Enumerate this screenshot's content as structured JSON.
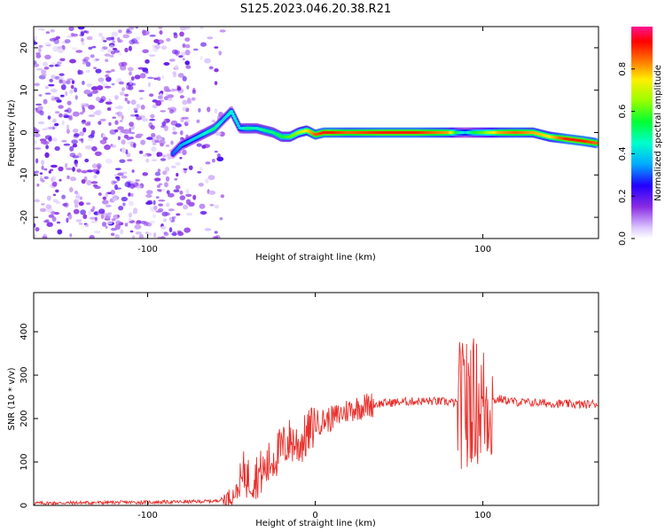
{
  "title": "S125.2023.046.20.38.R21",
  "colors": {
    "snr_line": "#e8302c",
    "spectrogram_background_speckle": "#8a2be2",
    "ridge_colors": [
      "#5500ff",
      "#00d4ff",
      "#00ff44",
      "#ffee00",
      "#ff0000"
    ]
  },
  "chart_data": [
    {
      "type": "heatmap",
      "name": "spectrogram",
      "xlabel": "Height of straight line (km)",
      "ylabel": "Frequency (Hz)",
      "xlim": [
        -168,
        169
      ],
      "ylim": [
        -25,
        25
      ],
      "xticks": [
        -100,
        100
      ],
      "yticks": [
        -20,
        -10,
        0,
        10,
        20
      ],
      "grid": false,
      "ridge": {
        "x": [
          -85,
          -80,
          -75,
          -70,
          -65,
          -60,
          -55,
          -50,
          -45,
          -40,
          -35,
          -30,
          -25,
          -20,
          -15,
          -10,
          -5,
          0,
          5,
          10,
          20,
          40,
          60,
          80,
          85,
          90,
          95,
          100,
          110,
          120,
          130,
          140,
          150,
          160,
          168
        ],
        "y": [
          -5,
          -3,
          -2,
          -1,
          0,
          1,
          3,
          5,
          1,
          1,
          1,
          0.5,
          0,
          -1,
          -1,
          0,
          0.5,
          -0.5,
          0,
          0,
          0,
          0,
          0,
          0,
          0,
          0,
          0,
          0,
          0,
          0,
          0,
          -1,
          -1.5,
          -2,
          -2.5
        ],
        "amplitude": [
          0.3,
          0.35,
          0.4,
          0.4,
          0.45,
          0.5,
          0.4,
          0.45,
          0.4,
          0.5,
          0.45,
          0.5,
          0.5,
          0.55,
          0.6,
          0.65,
          0.75,
          0.85,
          0.9,
          0.9,
          0.85,
          0.9,
          0.9,
          0.8,
          0.5,
          0.4,
          0.55,
          0.6,
          0.8,
          0.85,
          0.8,
          0.75,
          0.9,
          0.9,
          0.85
        ]
      },
      "colorbar": {
        "label": "Normalized spectral amplitude",
        "range": [
          0.0,
          1.0
        ],
        "ticks": [
          0.0,
          0.2,
          0.4,
          0.6,
          0.8
        ],
        "tick_labels": [
          "0.0",
          "0.2",
          "0.4",
          "0.6",
          "0.8"
        ],
        "colormap": "hsv-like (white/purple at 0 to red/pink at 1)"
      }
    },
    {
      "type": "line",
      "name": "snr",
      "xlabel": "Height of straight line (km)",
      "ylabel": "SNR (10 * v/v)",
      "xlim": [
        -168,
        169
      ],
      "ylim": [
        0,
        490
      ],
      "xticks": [
        -100,
        0,
        100
      ],
      "yticks": [
        0,
        100,
        200,
        300,
        400
      ],
      "grid": false,
      "series": [
        {
          "x": [
            -168,
            -140,
            -110,
            -80,
            -60,
            -50,
            -45,
            -42,
            -40,
            -35,
            -30,
            -25,
            -20,
            -15,
            -10,
            -5,
            0,
            10,
            20,
            30,
            40,
            50,
            60,
            70,
            80,
            85,
            88,
            90,
            92,
            95,
            100,
            105,
            110,
            120,
            140,
            160,
            169
          ],
          "values": [
            5,
            6,
            7,
            8,
            10,
            20,
            40,
            80,
            60,
            70,
            80,
            110,
            130,
            150,
            140,
            160,
            190,
            200,
            220,
            230,
            235,
            238,
            240,
            240,
            238,
            235,
            230,
            240,
            250,
            240,
            230,
            240,
            245,
            238,
            235,
            232,
            235
          ]
        }
      ]
    }
  ]
}
